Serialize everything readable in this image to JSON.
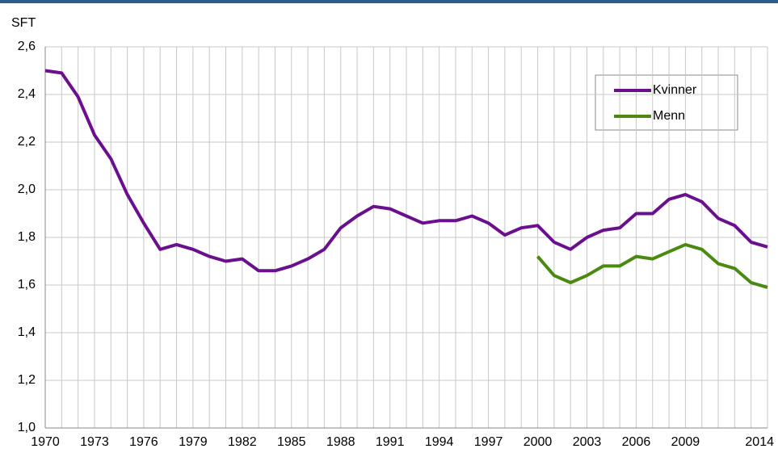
{
  "chart_data": {
    "type": "line",
    "y_label": "SFT",
    "x": [
      1970,
      1971,
      1972,
      1973,
      1974,
      1975,
      1976,
      1977,
      1978,
      1979,
      1980,
      1981,
      1982,
      1983,
      1984,
      1985,
      1986,
      1987,
      1988,
      1989,
      1990,
      1991,
      1992,
      1993,
      1994,
      1995,
      1996,
      1997,
      1998,
      1999,
      2000,
      2001,
      2002,
      2003,
      2004,
      2005,
      2006,
      2007,
      2008,
      2009,
      2010,
      2011,
      2012,
      2013,
      2014
    ],
    "xlim": [
      1970,
      2014
    ],
    "xticks": [
      1970,
      1973,
      1976,
      1979,
      1982,
      1985,
      1988,
      1991,
      1994,
      1997,
      2000,
      2003,
      2006,
      2009,
      2014
    ],
    "ylim": [
      1.0,
      2.6
    ],
    "yticks": [
      {
        "value": 1.0,
        "label": "1,0"
      },
      {
        "value": 1.2,
        "label": "1,2"
      },
      {
        "value": 1.4,
        "label": "1,4"
      },
      {
        "value": 1.6,
        "label": "1,6"
      },
      {
        "value": 1.8,
        "label": "1,8"
      },
      {
        "value": 2.0,
        "label": "2,0"
      },
      {
        "value": 2.2,
        "label": "2,2"
      },
      {
        "value": 2.4,
        "label": "2,4"
      },
      {
        "value": 2.6,
        "label": "2,6"
      }
    ],
    "grid": true,
    "legend": "upper right",
    "series": [
      {
        "name": "Kvinner",
        "color": "#6a0f8e",
        "values": [
          2.5,
          2.49,
          2.39,
          2.23,
          2.13,
          1.98,
          1.86,
          1.75,
          1.77,
          1.75,
          1.72,
          1.7,
          1.71,
          1.66,
          1.66,
          1.68,
          1.71,
          1.75,
          1.84,
          1.89,
          1.93,
          1.92,
          1.89,
          1.86,
          1.87,
          1.87,
          1.89,
          1.86,
          1.81,
          1.84,
          1.85,
          1.78,
          1.75,
          1.8,
          1.83,
          1.84,
          1.9,
          1.9,
          1.96,
          1.98,
          1.95,
          1.88,
          1.85,
          1.78,
          1.76
        ]
      },
      {
        "name": "Menn",
        "color": "#4a8a10",
        "values": [
          null,
          null,
          null,
          null,
          null,
          null,
          null,
          null,
          null,
          null,
          null,
          null,
          null,
          null,
          null,
          null,
          null,
          null,
          null,
          null,
          null,
          null,
          null,
          null,
          null,
          null,
          null,
          null,
          null,
          null,
          1.72,
          1.64,
          1.61,
          1.64,
          1.68,
          1.68,
          1.72,
          1.71,
          1.74,
          1.77,
          1.75,
          1.69,
          1.67,
          1.61,
          1.59
        ]
      }
    ]
  }
}
